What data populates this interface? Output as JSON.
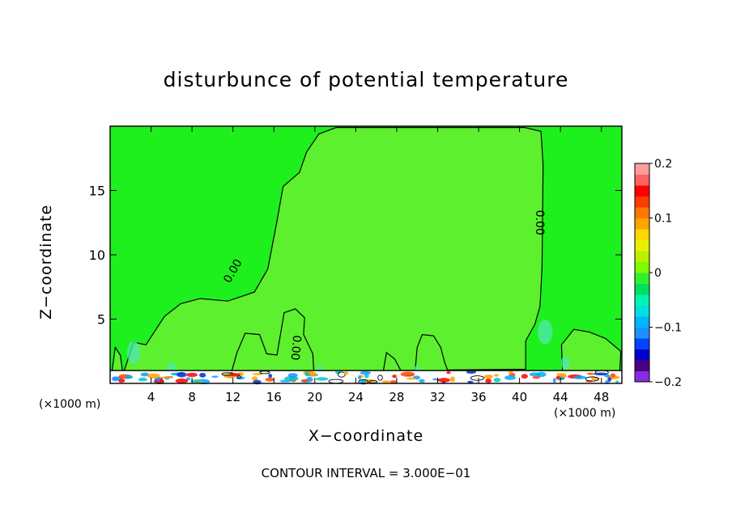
{
  "chart_data": {
    "type": "heatmap",
    "title": "disturbunce of potential temperature",
    "xlabel": "X−coordinate",
    "ylabel": "Z−coordinate",
    "x_unit": "(×1000 m)",
    "x_unit_right": "(×1000 m)",
    "xlim": [
      0,
      50
    ],
    "ylim": [
      0,
      20
    ],
    "x_ticks": [
      4,
      8,
      12,
      16,
      20,
      24,
      28,
      32,
      36,
      40,
      44,
      48
    ],
    "y_ticks": [
      5,
      10,
      15
    ],
    "contour_interval_text": "CONTOUR INTERVAL = 3.000E−01",
    "contour_labels": [
      "0.00",
      "0.00",
      "0.00"
    ],
    "colorbar": {
      "range": [
        -0.2,
        0.2
      ],
      "tick_labels": [
        "0.2",
        "0.1",
        "0",
        "−0.1",
        "−0.2"
      ],
      "tick_values": [
        0.2,
        0.1,
        0,
        -0.1,
        -0.2
      ],
      "colors": [
        "#8a2be2",
        "#4b0082",
        "#0000cd",
        "#0044ff",
        "#1e90ff",
        "#00b4ff",
        "#00e0e0",
        "#00f5b0",
        "#00e060",
        "#30f030",
        "#7cfc00",
        "#b8f000",
        "#e8f000",
        "#ffd700",
        "#ffa500",
        "#ff7800",
        "#ff3c00",
        "#ff0000",
        "#ff6060",
        "#ff9c9c"
      ]
    },
    "background_color": "#1ef01e",
    "positive_region_color": "#5cf02e"
  }
}
